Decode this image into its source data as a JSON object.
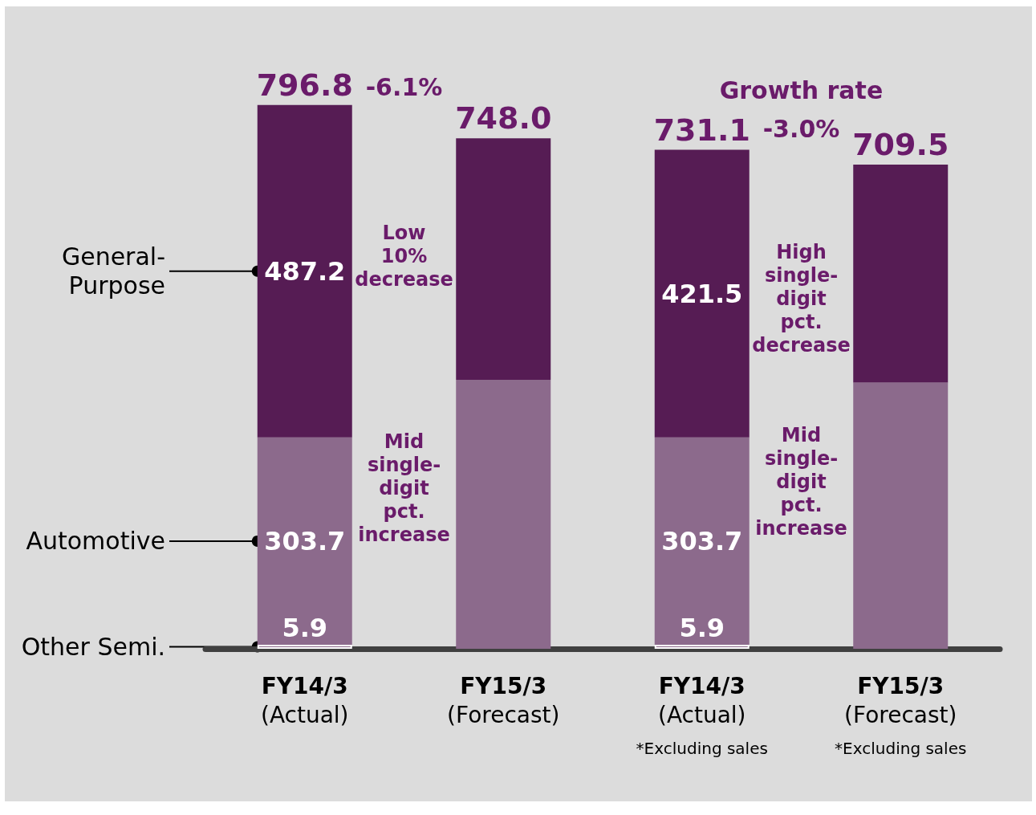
{
  "chart_data": {
    "type": "bar",
    "stacked": true,
    "categories": [
      "FY14/3\n(Actual)",
      "FY15/3\n(Forecast)",
      "FY14/3\n(Actual)",
      "FY15/3\n(Forecast)"
    ],
    "series": [
      {
        "name": "Other Semi.",
        "color": "#8c6a8c",
        "values": [
          5.9,
          null,
          5.9,
          null
        ],
        "value_labels": [
          "5.9",
          null,
          "5.9",
          null
        ]
      },
      {
        "name": "Automotive",
        "color": "#8c6a8c",
        "values": [
          303.7,
          394,
          303.7,
          390
        ],
        "value_labels": [
          "303.7",
          null,
          "303.7",
          null
        ]
      },
      {
        "name": "General-Purpose",
        "color": "#561c54",
        "values": [
          487.2,
          354,
          421.5,
          319.5
        ],
        "value_labels": [
          "487.2",
          null,
          "421.5",
          null
        ]
      }
    ],
    "totals": [
      "796.8",
      "748.0",
      "731.1",
      "709.5"
    ],
    "annotations": [
      "-6.1%",
      "Growth rate",
      "-3.0%",
      "Low\n10%\ndecrease",
      "High\nsingle-\ndigit\npct.\ndecrease",
      "Mid\nsingle-\ndigit\npct.\nincrease",
      "Mid\nsingle-\ndigit\npct.\nincrease",
      "*Excluding sales",
      "*Excluding sales"
    ],
    "legend": false
  }
}
